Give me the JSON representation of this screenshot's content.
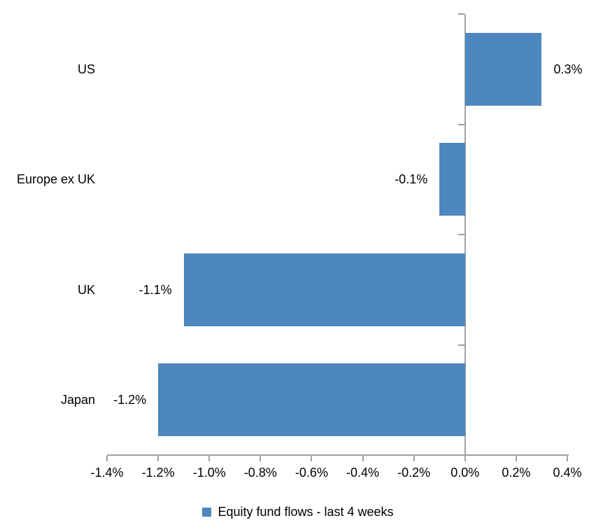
{
  "chart": {
    "title": "",
    "colors": {
      "bar": "#4E87BE",
      "axis": "#A0A0A0",
      "text": "#000000",
      "background": "#FFFFFF"
    },
    "legend": {
      "marker": "square-icon",
      "label": "Equity fund flows - last 4 weeks",
      "position": "bottom-center"
    }
  },
  "chart_data": {
    "type": "bar",
    "orientation": "horizontal",
    "title": "",
    "xlabel": "",
    "ylabel": "",
    "categories": [
      "US",
      "Europe ex UK",
      "UK",
      "Japan"
    ],
    "series": [
      {
        "name": "Equity fund flows - last 4 weeks",
        "values": [
          0.3,
          -0.1,
          -1.1,
          -1.2
        ],
        "data_labels": [
          "0.3%",
          "-0.1%",
          "-1.1%",
          "-1.2%"
        ]
      }
    ],
    "xlim": [
      -1.4,
      0.4
    ],
    "x_ticks": [
      -1.4,
      -1.2,
      -1.0,
      -0.8,
      -0.6,
      -0.4,
      -0.2,
      0.0,
      0.2,
      0.4
    ],
    "x_tick_labels": [
      "-1.4%",
      "-1.2%",
      "-1.0%",
      "-0.8%",
      "-0.6%",
      "-0.4%",
      "-0.2%",
      "0.0%",
      "0.2%",
      "0.4%"
    ],
    "grid": false,
    "data_label_position": "outside-end",
    "legend_position": "bottom"
  }
}
